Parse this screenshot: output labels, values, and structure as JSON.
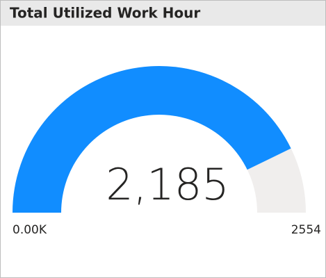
{
  "chart_data": {
    "type": "gauge",
    "title": "Total Utilized Work Hour",
    "values": [
      2185
    ],
    "value_labels": [
      "2,185"
    ],
    "ylim": [
      0,
      2554
    ],
    "yticks": [
      {
        "value": 0,
        "label": "0.00K"
      },
      2554
    ],
    "color": "#118dff",
    "track_color": "#f0eeed"
  }
}
